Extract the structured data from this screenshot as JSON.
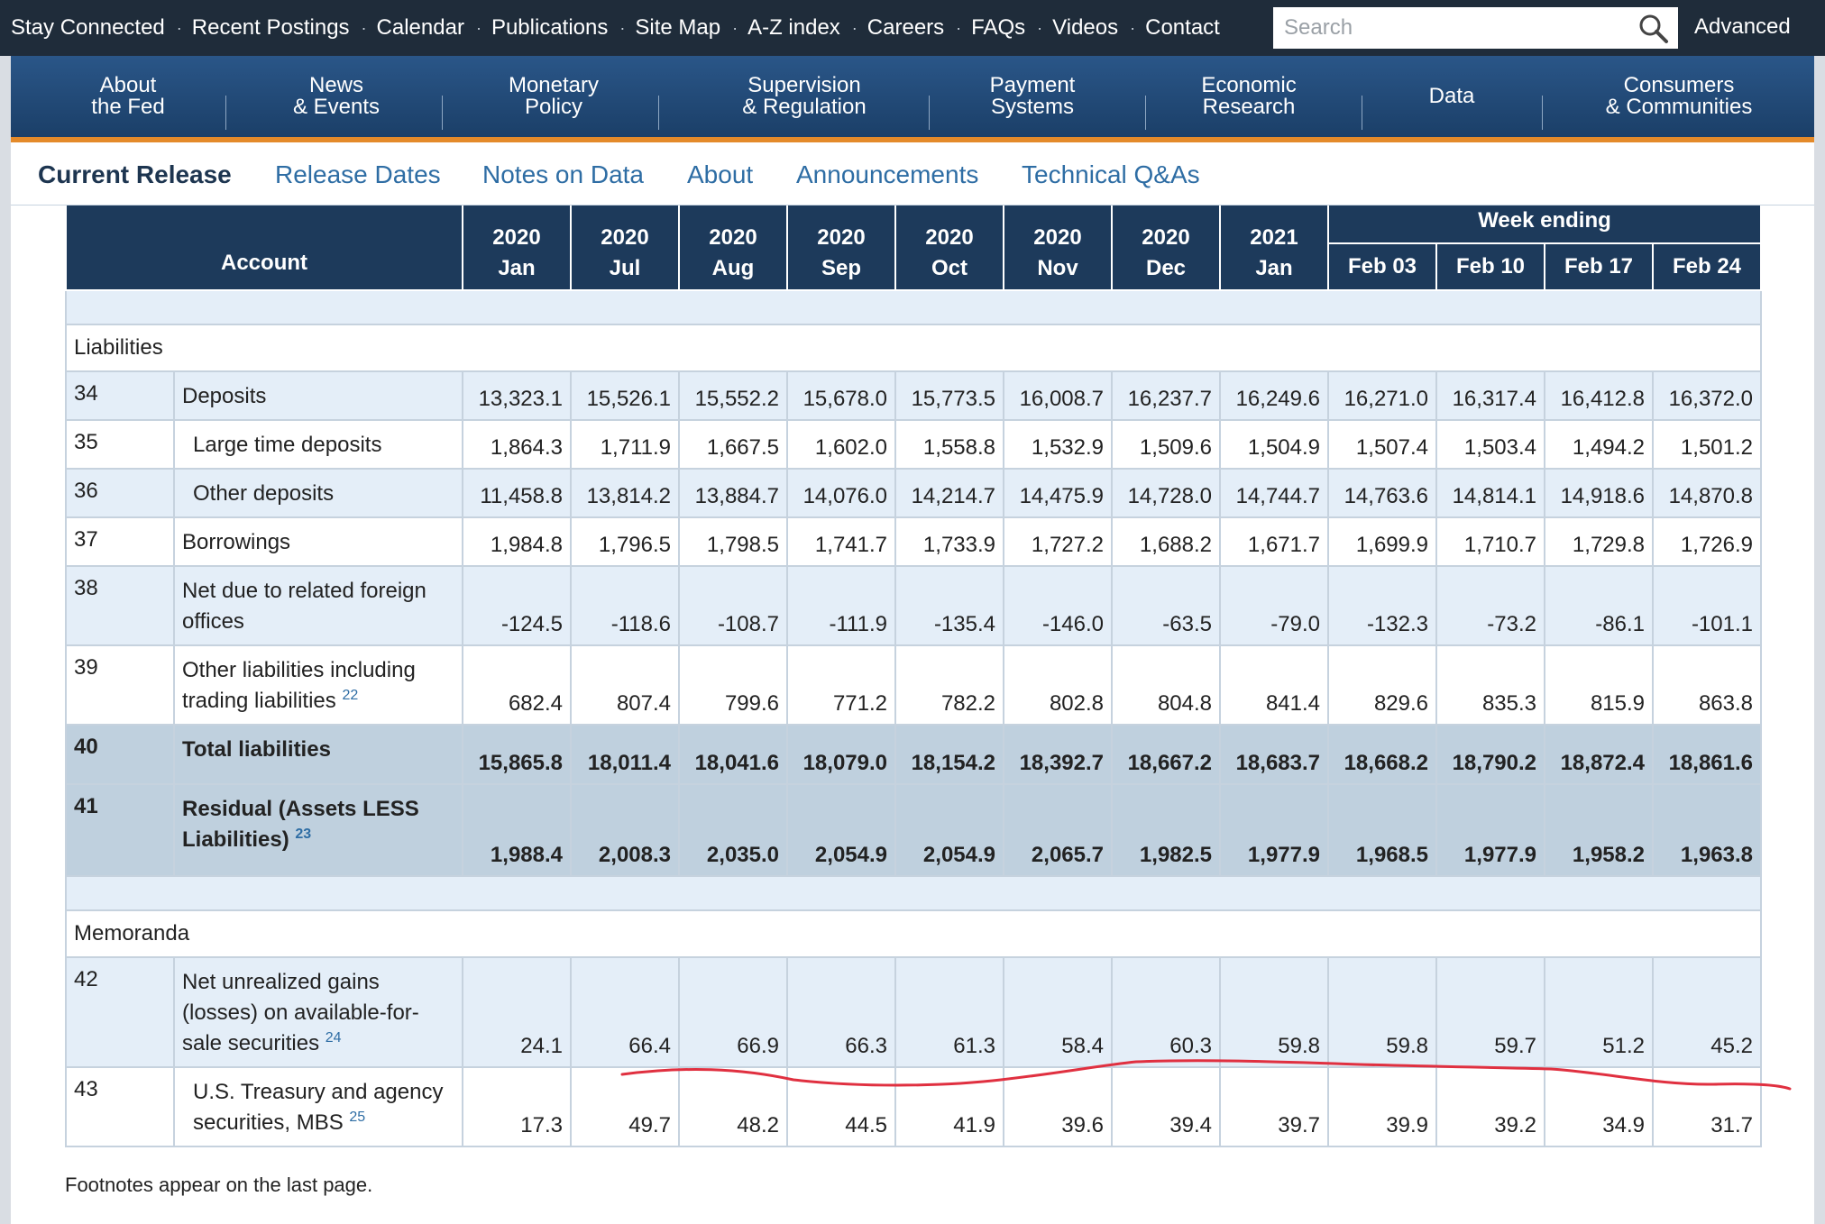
{
  "topbar": {
    "links": [
      "Stay Connected",
      "Recent Postings",
      "Calendar",
      "Publications",
      "Site Map",
      "A-Z index",
      "Careers",
      "FAQs",
      "Videos",
      "Contact"
    ],
    "search_placeholder": "Search",
    "advanced": "Advanced"
  },
  "mainnav": [
    {
      "line1": "About",
      "line2": "the Fed"
    },
    {
      "line1": "News",
      "line2": "& Events"
    },
    {
      "line1": "Monetary",
      "line2": "Policy"
    },
    {
      "line1": "Supervision",
      "line2": "& Regulation"
    },
    {
      "line1": "Payment",
      "line2": "Systems"
    },
    {
      "line1": "Economic",
      "line2": "Research"
    },
    {
      "line1": "Data",
      "line2": ""
    },
    {
      "line1": "Consumers",
      "line2": "& Communities"
    }
  ],
  "subnav": [
    "Current Release",
    "Release Dates",
    "Notes on Data",
    "About",
    "Announcements",
    "Technical Q&As"
  ],
  "table": {
    "account_header": "Account",
    "week_ending": "Week ending",
    "monthly_cols": [
      {
        "year": "2020",
        "month": "Jan"
      },
      {
        "year": "2020",
        "month": "Jul"
      },
      {
        "year": "2020",
        "month": "Aug"
      },
      {
        "year": "2020",
        "month": "Sep"
      },
      {
        "year": "2020",
        "month": "Oct"
      },
      {
        "year": "2020",
        "month": "Nov"
      },
      {
        "year": "2020",
        "month": "Dec"
      },
      {
        "year": "2021",
        "month": "Jan"
      }
    ],
    "weekly_cols": [
      "Feb 03",
      "Feb 10",
      "Feb 17",
      "Feb 24"
    ],
    "liabilities_label": "Liabilities",
    "memoranda_label": "Memoranda",
    "rows": [
      {
        "n": "34",
        "label": "Deposits",
        "indent": false,
        "sup": "",
        "style": "blue",
        "values": [
          "13,323.1",
          "15,526.1",
          "15,552.2",
          "15,678.0",
          "15,773.5",
          "16,008.7",
          "16,237.7",
          "16,249.6",
          "16,271.0",
          "16,317.4",
          "16,412.8",
          "16,372.0"
        ]
      },
      {
        "n": "35",
        "label": "Large time deposits",
        "indent": true,
        "sup": "",
        "style": "white",
        "values": [
          "1,864.3",
          "1,711.9",
          "1,667.5",
          "1,602.0",
          "1,558.8",
          "1,532.9",
          "1,509.6",
          "1,504.9",
          "1,507.4",
          "1,503.4",
          "1,494.2",
          "1,501.2"
        ]
      },
      {
        "n": "36",
        "label": "Other deposits",
        "indent": true,
        "sup": "",
        "style": "blue",
        "values": [
          "11,458.8",
          "13,814.2",
          "13,884.7",
          "14,076.0",
          "14,214.7",
          "14,475.9",
          "14,728.0",
          "14,744.7",
          "14,763.6",
          "14,814.1",
          "14,918.6",
          "14,870.8"
        ]
      },
      {
        "n": "37",
        "label": "Borrowings",
        "indent": false,
        "sup": "",
        "style": "white",
        "values": [
          "1,984.8",
          "1,796.5",
          "1,798.5",
          "1,741.7",
          "1,733.9",
          "1,727.2",
          "1,688.2",
          "1,671.7",
          "1,699.9",
          "1,710.7",
          "1,729.8",
          "1,726.9"
        ]
      },
      {
        "n": "38",
        "label": "Net due to related foreign offices",
        "indent": false,
        "sup": "",
        "style": "blue",
        "values": [
          "-124.5",
          "-118.6",
          "-108.7",
          "-111.9",
          "-135.4",
          "-146.0",
          "-63.5",
          "-79.0",
          "-132.3",
          "-73.2",
          "-86.1",
          "-101.1"
        ]
      },
      {
        "n": "39",
        "label": "Other liabilities including trading liabilities",
        "indent": false,
        "sup": "22",
        "style": "white",
        "values": [
          "682.4",
          "807.4",
          "799.6",
          "771.2",
          "782.2",
          "802.8",
          "804.8",
          "841.4",
          "829.6",
          "835.3",
          "815.9",
          "863.8"
        ]
      },
      {
        "n": "40",
        "label": "Total liabilities",
        "indent": false,
        "sup": "",
        "style": "total",
        "values": [
          "15,865.8",
          "18,011.4",
          "18,041.6",
          "18,079.0",
          "18,154.2",
          "18,392.7",
          "18,667.2",
          "18,683.7",
          "18,668.2",
          "18,790.2",
          "18,872.4",
          "18,861.6"
        ]
      },
      {
        "n": "41",
        "label": "Residual (Assets LESS Liabilities)",
        "indent": false,
        "sup": "23",
        "style": "total",
        "values": [
          "1,988.4",
          "2,008.3",
          "2,035.0",
          "2,054.9",
          "2,054.9",
          "2,065.7",
          "1,982.5",
          "1,977.9",
          "1,968.5",
          "1,977.9",
          "1,958.2",
          "1,963.8"
        ]
      }
    ],
    "memo_rows": [
      {
        "n": "42",
        "label": "Net unrealized gains (losses) on available-for-sale securities",
        "indent": false,
        "sup": "24",
        "style": "blue",
        "values": [
          "24.1",
          "66.4",
          "66.9",
          "66.3",
          "61.3",
          "58.4",
          "60.3",
          "59.8",
          "59.8",
          "59.7",
          "51.2",
          "45.2"
        ]
      },
      {
        "n": "43",
        "label": "U.S. Treasury and agency securities, MBS",
        "indent": true,
        "sup": "25",
        "style": "white",
        "values": [
          "17.3",
          "49.7",
          "48.2",
          "44.5",
          "41.9",
          "39.6",
          "39.4",
          "39.7",
          "39.9",
          "39.2",
          "34.9",
          "31.7"
        ]
      }
    ]
  },
  "footnote": "Footnotes appear on the last page.",
  "colors": {
    "topbar": "#1f2c3a",
    "nav": "#1f4a78",
    "accent": "#e48a2a",
    "header": "#1d3a5b",
    "annotation": "#e03040"
  }
}
